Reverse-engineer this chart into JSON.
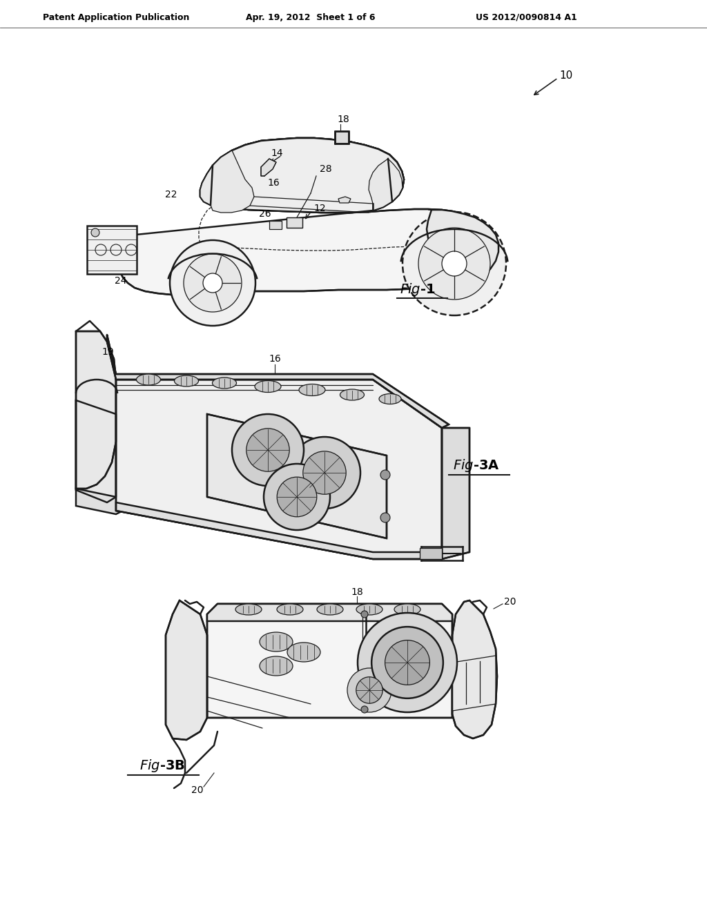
{
  "bg_color": "#ffffff",
  "header_left": "Patent Application Publication",
  "header_center": "Apr. 19, 2012  Sheet 1 of 6",
  "header_right": "US 2012/0090814 A1",
  "line_color": "#1a1a1a",
  "lw": 1.8,
  "tlw": 0.9
}
